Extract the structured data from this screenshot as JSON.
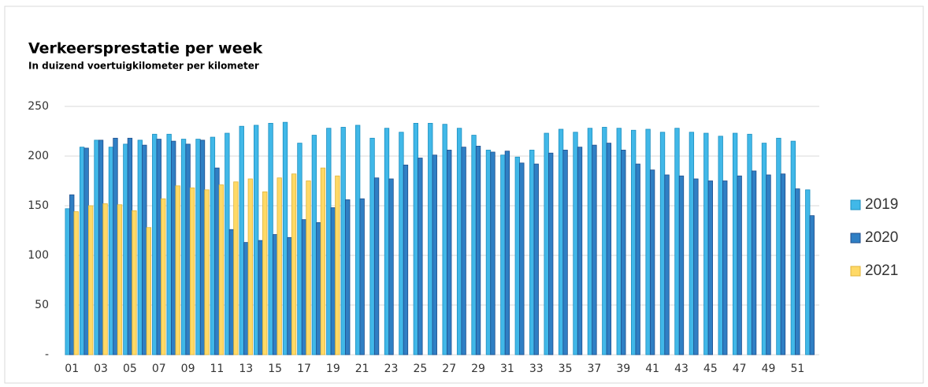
{
  "chart_data": {
    "type": "bar",
    "title": "Verkeersprestatie per week",
    "subtitle": "In duizend voertuigkilometer  per kilometer",
    "categories": [
      "01",
      null,
      "03",
      null,
      "05",
      null,
      "07",
      null,
      "09",
      null,
      "11",
      null,
      "13",
      null,
      "15",
      null,
      "17",
      null,
      "19",
      null,
      "21",
      null,
      "23",
      null,
      "25",
      null,
      "27",
      null,
      "29",
      null,
      "31",
      null,
      "33",
      null,
      "35",
      null,
      "37",
      null,
      "39",
      null,
      "41",
      null,
      "43",
      null,
      "45",
      null,
      "47",
      null,
      "49",
      null,
      "51",
      null
    ],
    "series": [
      {
        "name": "2019",
        "color": "#41b8e8",
        "values": [
          147,
          209,
          216,
          209,
          212,
          216,
          222,
          222,
          217,
          217,
          219,
          223,
          230,
          231,
          233,
          234,
          213,
          221,
          228,
          229,
          231,
          218,
          228,
          224,
          233,
          233,
          232,
          228,
          221,
          206,
          201,
          199,
          206,
          223,
          227,
          224,
          228,
          229,
          228,
          226,
          227,
          224,
          228,
          224,
          223,
          220,
          223,
          222,
          213,
          218,
          215,
          166
        ]
      },
      {
        "name": "2020",
        "color": "#2f7fc4",
        "values": [
          161,
          208,
          216,
          218,
          218,
          211,
          217,
          215,
          212,
          216,
          188,
          126,
          113,
          115,
          121,
          118,
          136,
          133,
          148,
          156,
          157,
          178,
          177,
          191,
          198,
          201,
          206,
          209,
          210,
          204,
          205,
          193,
          192,
          203,
          206,
          209,
          211,
          213,
          206,
          192,
          186,
          181,
          180,
          177,
          175,
          175,
          180,
          185,
          181,
          182,
          167,
          140
        ]
      },
      {
        "name": "2021",
        "color": "#ffd966",
        "values": [
          144,
          150,
          152,
          151,
          145,
          128,
          157,
          170,
          168,
          166,
          171,
          174,
          177,
          164,
          178,
          182,
          175,
          188,
          180,
          null,
          null,
          null,
          null,
          null,
          null,
          null,
          null,
          null,
          null,
          null,
          null,
          null,
          null,
          null,
          null,
          null,
          null,
          null,
          null,
          null,
          null,
          null,
          null,
          null,
          null,
          null,
          null,
          null,
          null,
          null,
          null,
          null
        ]
      }
    ],
    "ylim": [
      0,
      250
    ],
    "yticks": [
      {
        "value": 0,
        "label": "-"
      },
      50,
      100,
      150,
      200,
      250
    ],
    "grid": true,
    "legend": "right"
  }
}
